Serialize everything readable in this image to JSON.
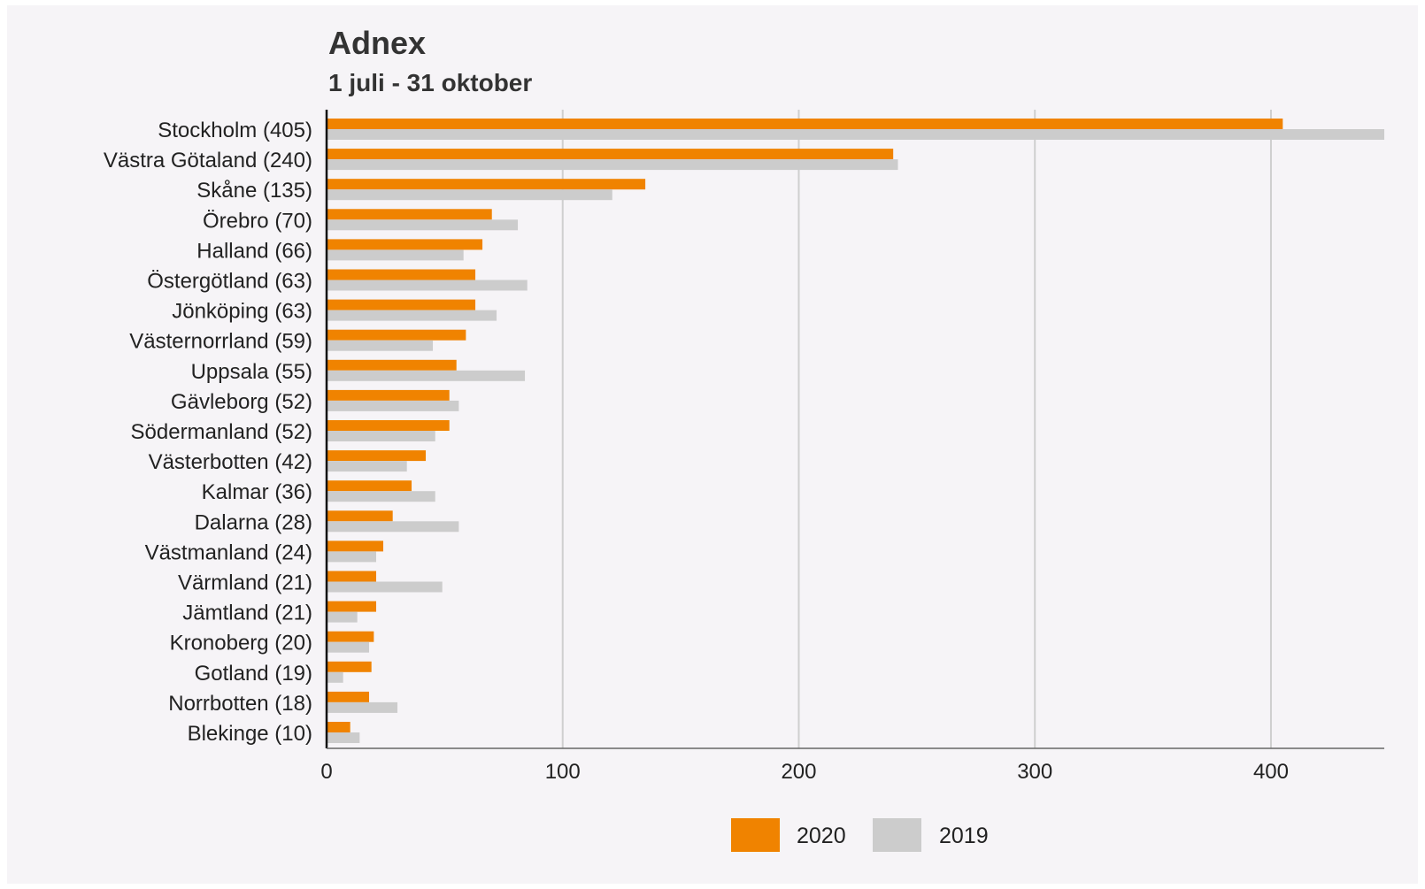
{
  "chart_data": {
    "type": "bar",
    "orientation": "horizontal",
    "title": "Adnex",
    "subtitle": "1 juli - 31 oktober",
    "categories": [
      "Stockholm (405)",
      "Västra Götaland (240)",
      "Skåne (135)",
      "Örebro (70)",
      "Halland (66)",
      "Östergötland (63)",
      "Jönköping (63)",
      "Västernorrland (59)",
      "Uppsala (55)",
      "Gävleborg (52)",
      "Södermanland (52)",
      "Västerbotten (42)",
      "Kalmar (36)",
      "Dalarna (28)",
      "Västmanland (24)",
      "Värmland (21)",
      "Jämtland (21)",
      "Kronoberg (20)",
      "Gotland (19)",
      "Norrbotten (18)",
      "Blekinge (10)"
    ],
    "series": [
      {
        "name": "2020",
        "color": "#f08300",
        "values": [
          405,
          240,
          135,
          70,
          66,
          63,
          63,
          59,
          55,
          52,
          52,
          42,
          36,
          28,
          24,
          21,
          21,
          20,
          19,
          18,
          10
        ]
      },
      {
        "name": "2019",
        "color": "#cccccc",
        "values": [
          448,
          242,
          121,
          81,
          58,
          85,
          72,
          45,
          84,
          56,
          46,
          34,
          46,
          56,
          21,
          49,
          13,
          18,
          7,
          30,
          14
        ]
      }
    ],
    "xlim": [
      0,
      448
    ],
    "xticks": [
      0,
      100,
      200,
      300,
      400
    ],
    "grid": true,
    "legend_position": "bottom-center"
  }
}
